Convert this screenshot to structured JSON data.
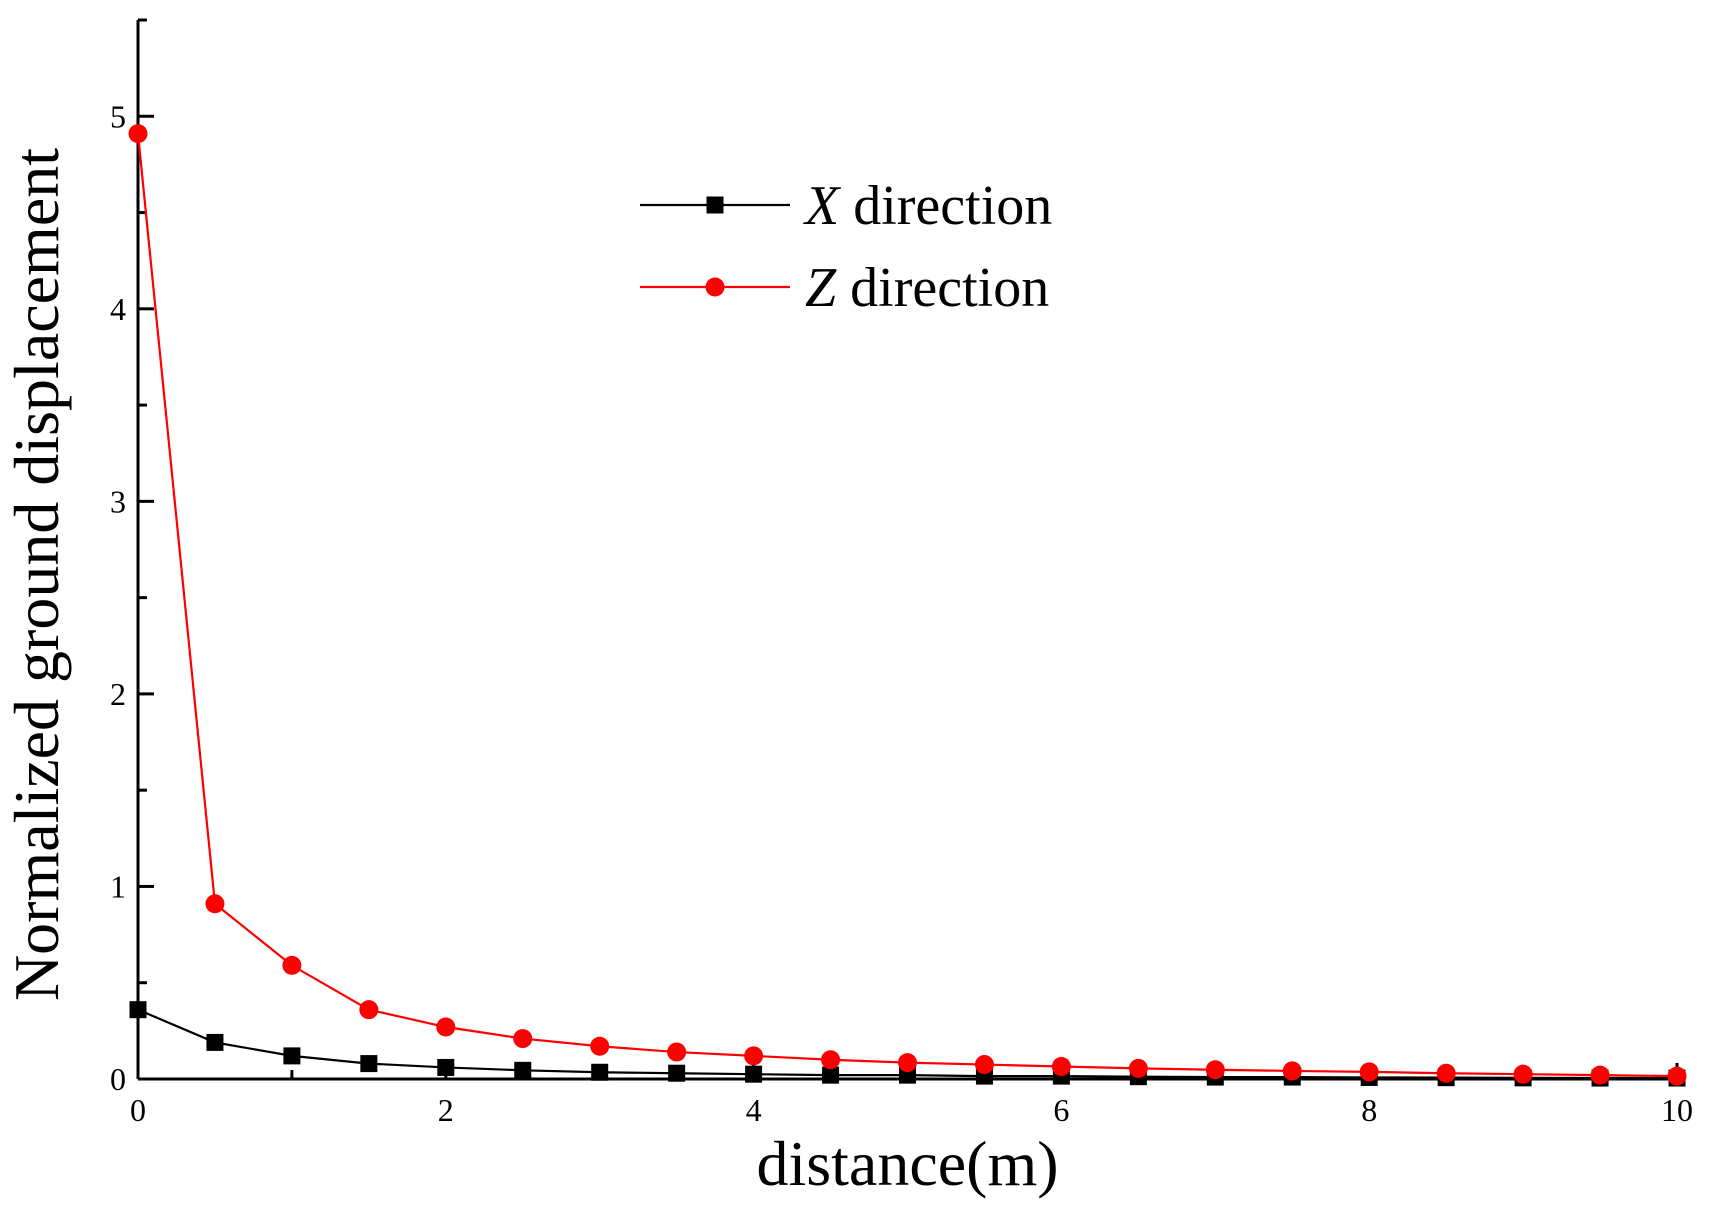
{
  "chart_data": {
    "type": "line",
    "xlabel": "distance(m)",
    "ylabel": "Normalized ground displacement",
    "xlim": [
      0,
      10
    ],
    "ylim": [
      0,
      5.5
    ],
    "x_ticks": [
      "0",
      "2",
      "4",
      "6",
      "8",
      "10"
    ],
    "y_ticks": [
      "0",
      "1",
      "2",
      "3",
      "4",
      "5"
    ],
    "x": [
      0,
      0.5,
      1,
      1.5,
      2,
      2.5,
      3,
      3.5,
      4,
      4.5,
      5,
      5.5,
      6,
      6.5,
      7,
      7.5,
      8,
      8.5,
      9,
      9.5,
      10
    ],
    "series": [
      {
        "name_var": "X",
        "name_rest": " direction",
        "color": "#000000",
        "marker": "square",
        "values": [
          0.36,
          0.19,
          0.12,
          0.08,
          0.06,
          0.045,
          0.035,
          0.03,
          0.025,
          0.02,
          0.02,
          0.015,
          0.015,
          0.012,
          0.01,
          0.01,
          0.008,
          0.007,
          0.006,
          0.005,
          0.005
        ]
      },
      {
        "name_var": "Z",
        "name_rest": " direction",
        "color": "#ff0000",
        "marker": "circle",
        "values": [
          4.91,
          0.91,
          0.59,
          0.36,
          0.27,
          0.21,
          0.17,
          0.14,
          0.12,
          0.1,
          0.085,
          0.075,
          0.065,
          0.055,
          0.048,
          0.042,
          0.037,
          0.03,
          0.025,
          0.02,
          0.015
        ]
      }
    ],
    "legend_position": "top-center"
  }
}
